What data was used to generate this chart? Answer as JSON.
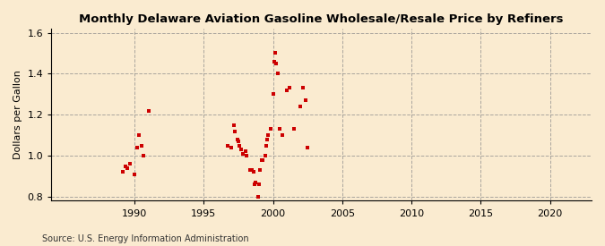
{
  "title": "Monthly Delaware Aviation Gasoline Wholesale/Resale Price by Refiners",
  "ylabel": "Dollars per Gallon",
  "source": "Source: U.S. Energy Information Administration",
  "xlim": [
    1984,
    2023
  ],
  "ylim": [
    0.78,
    1.62
  ],
  "xticks": [
    1990,
    1995,
    2000,
    2005,
    2010,
    2015,
    2020
  ],
  "yticks": [
    0.8,
    1.0,
    1.2,
    1.4,
    1.6
  ],
  "background_color": "#faebd0",
  "plot_bg_color": "#faebd0",
  "marker_color": "#cc0000",
  "grid_color": "#888888",
  "data_points": [
    [
      1989.17,
      0.92
    ],
    [
      1989.33,
      0.95
    ],
    [
      1989.5,
      0.94
    ],
    [
      1989.67,
      0.96
    ],
    [
      1990.0,
      0.91
    ],
    [
      1990.17,
      1.04
    ],
    [
      1990.33,
      1.1
    ],
    [
      1990.5,
      1.05
    ],
    [
      1990.67,
      1.0
    ],
    [
      1991.0,
      1.22
    ],
    [
      1996.75,
      1.05
    ],
    [
      1997.0,
      1.04
    ],
    [
      1997.17,
      1.15
    ],
    [
      1997.25,
      1.12
    ],
    [
      1997.42,
      1.08
    ],
    [
      1997.5,
      1.07
    ],
    [
      1997.58,
      1.05
    ],
    [
      1997.67,
      1.03
    ],
    [
      1997.83,
      1.01
    ],
    [
      1998.0,
      1.02
    ],
    [
      1998.08,
      1.0
    ],
    [
      1998.33,
      0.93
    ],
    [
      1998.5,
      0.93
    ],
    [
      1998.58,
      0.92
    ],
    [
      1998.67,
      0.86
    ],
    [
      1998.75,
      0.87
    ],
    [
      1998.92,
      0.8
    ],
    [
      1999.0,
      0.86
    ],
    [
      1999.08,
      0.93
    ],
    [
      1999.17,
      0.98
    ],
    [
      1999.25,
      0.98
    ],
    [
      1999.42,
      1.0
    ],
    [
      1999.5,
      1.05
    ],
    [
      1999.58,
      1.08
    ],
    [
      1999.67,
      1.1
    ],
    [
      1999.83,
      1.13
    ],
    [
      2000.0,
      1.3
    ],
    [
      2000.08,
      1.46
    ],
    [
      2000.17,
      1.5
    ],
    [
      2000.25,
      1.45
    ],
    [
      2000.33,
      1.4
    ],
    [
      2000.5,
      1.13
    ],
    [
      2000.67,
      1.1
    ],
    [
      2001.0,
      1.32
    ],
    [
      2001.17,
      1.33
    ],
    [
      2001.5,
      1.13
    ],
    [
      2002.0,
      1.24
    ],
    [
      2002.17,
      1.33
    ],
    [
      2002.33,
      1.27
    ],
    [
      2002.5,
      1.04
    ]
  ]
}
